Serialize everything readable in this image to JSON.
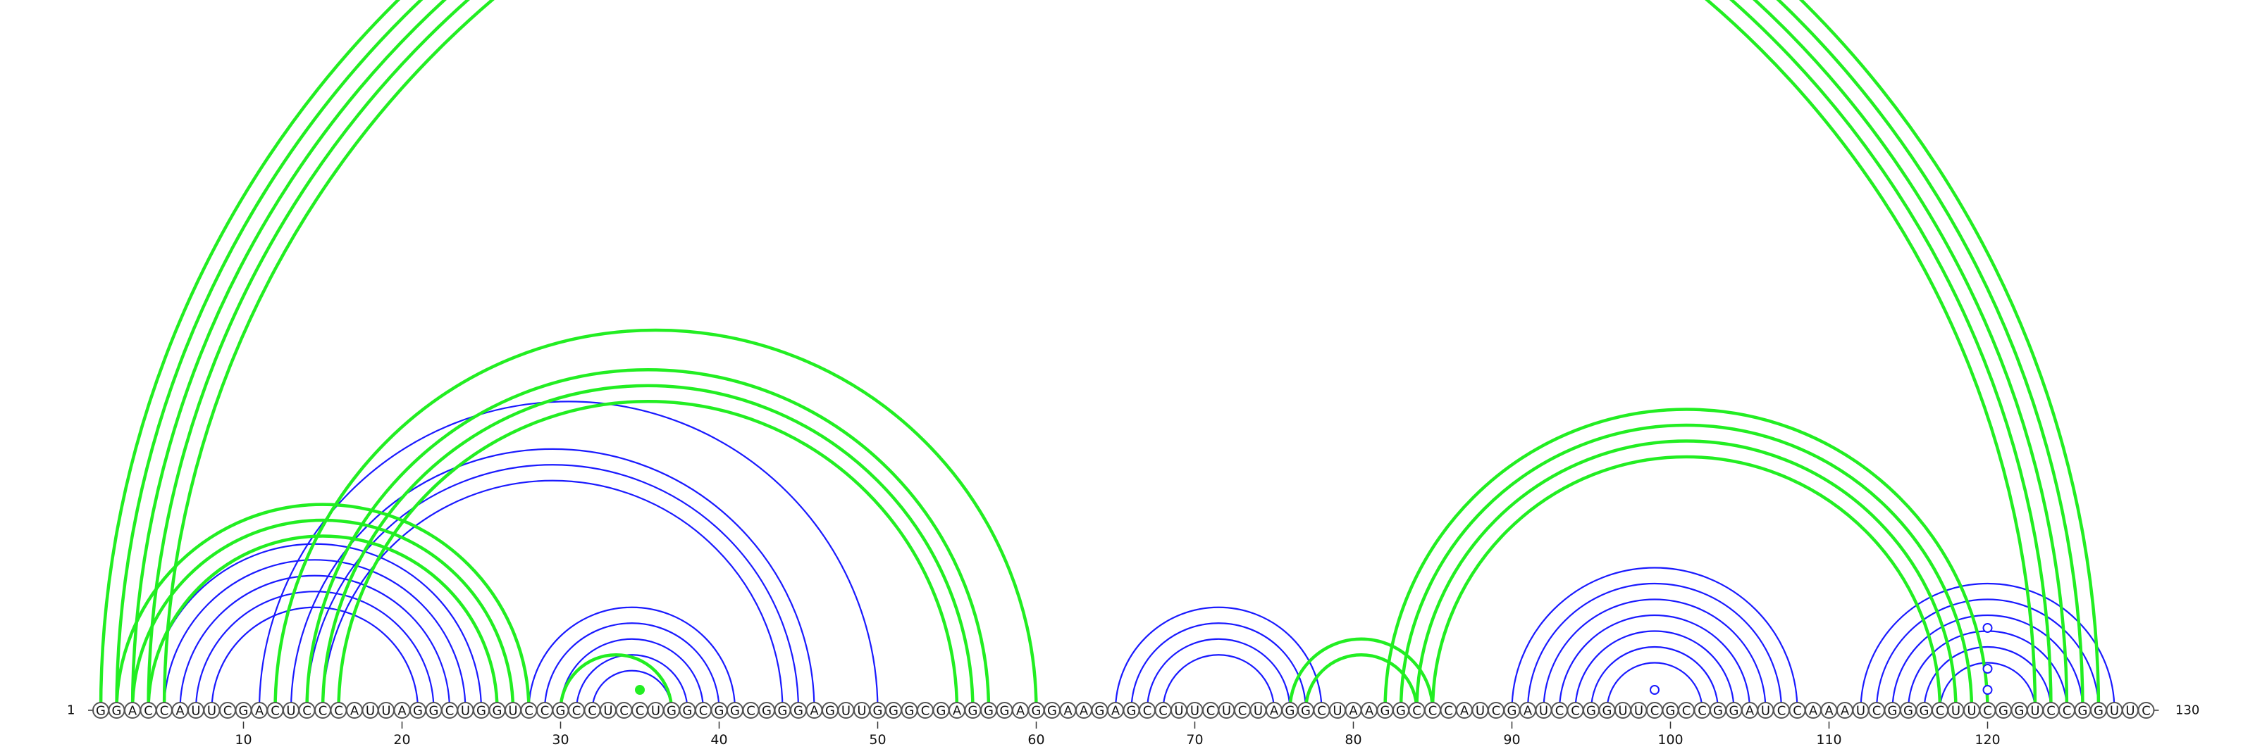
{
  "chart_data": {
    "type": "arc-diagram",
    "sequence": "GGACCAUUCGACUCCCAUUAGGCUGGUCCGCCUCCUGGCGGCGGGAGUUGGGCGAGGGAGGAAGAGCCUUCUCUAGGCUAAGGCCCAUCGAUCCGGUUCGCCGGAUCCAAAUCGGGCUUCGGUCCGGUUC",
    "start_label": "1",
    "end_label": "130",
    "ticks": [
      10,
      20,
      30,
      40,
      50,
      60,
      70,
      80,
      90,
      100,
      110,
      120
    ],
    "colors": {
      "blue": "#1a1aff",
      "green": "#22ee22"
    },
    "arcs_green": [
      [
        1,
        127
      ],
      [
        2,
        126
      ],
      [
        3,
        125
      ],
      [
        4,
        124
      ],
      [
        5,
        123
      ],
      [
        2,
        28
      ],
      [
        3,
        27
      ],
      [
        4,
        26
      ],
      [
        12,
        60
      ],
      [
        14,
        57
      ],
      [
        15,
        56
      ],
      [
        16,
        55
      ],
      [
        30,
        37
      ],
      [
        76,
        85
      ],
      [
        77,
        84
      ],
      [
        82,
        120
      ],
      [
        83,
        119
      ],
      [
        84,
        118
      ],
      [
        85,
        117
      ]
    ],
    "arcs_blue": [
      [
        4,
        25
      ],
      [
        5,
        24
      ],
      [
        6,
        23
      ],
      [
        7,
        22
      ],
      [
        8,
        21
      ],
      [
        11,
        50
      ],
      [
        13,
        46
      ],
      [
        14,
        45
      ],
      [
        15,
        44
      ],
      [
        28,
        41
      ],
      [
        29,
        40
      ],
      [
        30,
        39
      ],
      [
        31,
        38
      ],
      [
        32,
        37
      ],
      [
        65,
        78
      ],
      [
        66,
        77
      ],
      [
        67,
        76
      ],
      [
        68,
        75
      ],
      [
        90,
        108
      ],
      [
        91,
        107
      ],
      [
        92,
        106
      ],
      [
        93,
        105
      ],
      [
        94,
        104
      ],
      [
        95,
        103
      ],
      [
        96,
        102
      ],
      [
        112,
        128
      ],
      [
        113,
        127
      ],
      [
        114,
        126
      ],
      [
        115,
        125
      ],
      [
        116,
        124
      ],
      [
        117,
        123
      ]
    ],
    "markers_green_filled": [
      35
    ],
    "markers_blue_open": [
      99,
      120,
      120,
      120
    ]
  }
}
